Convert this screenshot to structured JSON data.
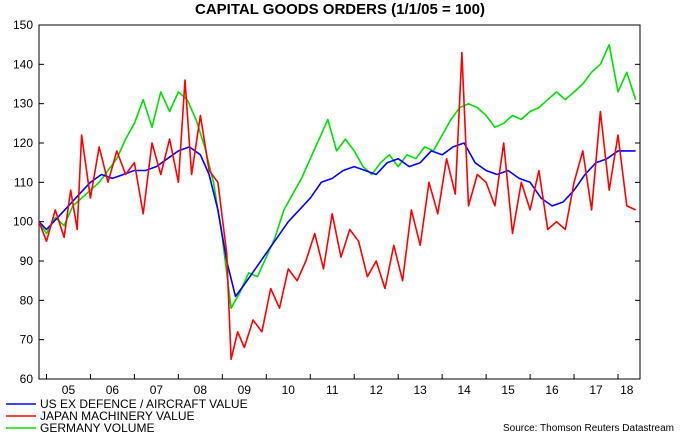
{
  "chart_data": {
    "type": "line",
    "title": "CAPITAL GOODS ORDERS (1/1/05 = 100)",
    "source": "Source: Thomson Reuters Datastream",
    "ylim": [
      60,
      150
    ],
    "yticks": [
      60,
      70,
      80,
      90,
      100,
      110,
      120,
      130,
      140,
      150
    ],
    "xlim": [
      2004.83,
      2018.5
    ],
    "xticks": [
      {
        "label": "05",
        "x": 2005.5
      },
      {
        "label": "06",
        "x": 2006.5
      },
      {
        "label": "07",
        "x": 2007.5
      },
      {
        "label": "08",
        "x": 2008.5
      },
      {
        "label": "09",
        "x": 2009.5
      },
      {
        "label": "10",
        "x": 2010.5
      },
      {
        "label": "11",
        "x": 2011.5
      },
      {
        "label": "12",
        "x": 2012.5
      },
      {
        "label": "13",
        "x": 2013.5
      },
      {
        "label": "14",
        "x": 2014.5
      },
      {
        "label": "15",
        "x": 2015.5
      },
      {
        "label": "16",
        "x": 2016.5
      },
      {
        "label": "17",
        "x": 2017.5
      },
      {
        "label": "18",
        "x": 2018.2
      }
    ],
    "grid": false,
    "legend_position": "bottom-left",
    "series": [
      {
        "name": "US EX DEFENCE / AIRCRAFT VALUE",
        "color": "#0000ff",
        "points": [
          [
            2004.83,
            100
          ],
          [
            2005.0,
            98
          ],
          [
            2005.25,
            101
          ],
          [
            2005.5,
            104
          ],
          [
            2005.75,
            107
          ],
          [
            2006.0,
            110
          ],
          [
            2006.25,
            112
          ],
          [
            2006.5,
            111
          ],
          [
            2006.75,
            112
          ],
          [
            2007.0,
            113
          ],
          [
            2007.25,
            113
          ],
          [
            2007.5,
            114
          ],
          [
            2007.75,
            116
          ],
          [
            2008.0,
            118
          ],
          [
            2008.25,
            119
          ],
          [
            2008.5,
            117
          ],
          [
            2008.7,
            112
          ],
          [
            2008.9,
            103
          ],
          [
            2009.1,
            90
          ],
          [
            2009.3,
            81
          ],
          [
            2009.5,
            84
          ],
          [
            2009.75,
            88
          ],
          [
            2010.0,
            92
          ],
          [
            2010.25,
            96
          ],
          [
            2010.5,
            100
          ],
          [
            2010.75,
            103
          ],
          [
            2011.0,
            106
          ],
          [
            2011.25,
            110
          ],
          [
            2011.5,
            111
          ],
          [
            2011.75,
            113
          ],
          [
            2012.0,
            114
          ],
          [
            2012.25,
            113
          ],
          [
            2012.5,
            112
          ],
          [
            2012.75,
            115
          ],
          [
            2013.0,
            116
          ],
          [
            2013.25,
            114
          ],
          [
            2013.5,
            115
          ],
          [
            2013.75,
            118
          ],
          [
            2014.0,
            117
          ],
          [
            2014.25,
            119
          ],
          [
            2014.5,
            120
          ],
          [
            2014.75,
            115
          ],
          [
            2015.0,
            113
          ],
          [
            2015.25,
            112
          ],
          [
            2015.5,
            113
          ],
          [
            2015.75,
            111
          ],
          [
            2016.0,
            110
          ],
          [
            2016.25,
            106
          ],
          [
            2016.5,
            104
          ],
          [
            2016.75,
            105
          ],
          [
            2017.0,
            108
          ],
          [
            2017.25,
            112
          ],
          [
            2017.5,
            115
          ],
          [
            2017.75,
            116
          ],
          [
            2018.0,
            118
          ],
          [
            2018.4,
            118
          ]
        ]
      },
      {
        "name": "JAPAN MACHINERY VALUE",
        "color": "#ff0000",
        "points": [
          [
            2004.83,
            100
          ],
          [
            2005.0,
            95
          ],
          [
            2005.2,
            103
          ],
          [
            2005.4,
            96
          ],
          [
            2005.55,
            108
          ],
          [
            2005.7,
            98
          ],
          [
            2005.8,
            122
          ],
          [
            2006.0,
            106
          ],
          [
            2006.2,
            119
          ],
          [
            2006.4,
            110
          ],
          [
            2006.6,
            118
          ],
          [
            2006.8,
            112
          ],
          [
            2007.0,
            115
          ],
          [
            2007.2,
            102
          ],
          [
            2007.4,
            120
          ],
          [
            2007.6,
            112
          ],
          [
            2007.8,
            121
          ],
          [
            2008.0,
            110
          ],
          [
            2008.15,
            136
          ],
          [
            2008.3,
            112
          ],
          [
            2008.5,
            127
          ],
          [
            2008.7,
            113
          ],
          [
            2008.9,
            110
          ],
          [
            2009.1,
            92
          ],
          [
            2009.2,
            65
          ],
          [
            2009.35,
            72
          ],
          [
            2009.5,
            68
          ],
          [
            2009.7,
            75
          ],
          [
            2009.9,
            72
          ],
          [
            2010.1,
            83
          ],
          [
            2010.3,
            78
          ],
          [
            2010.5,
            88
          ],
          [
            2010.7,
            85
          ],
          [
            2010.9,
            90
          ],
          [
            2011.1,
            97
          ],
          [
            2011.3,
            88
          ],
          [
            2011.5,
            102
          ],
          [
            2011.7,
            91
          ],
          [
            2011.9,
            98
          ],
          [
            2012.1,
            95
          ],
          [
            2012.3,
            86
          ],
          [
            2012.5,
            90
          ],
          [
            2012.7,
            83
          ],
          [
            2012.9,
            94
          ],
          [
            2013.1,
            85
          ],
          [
            2013.3,
            103
          ],
          [
            2013.5,
            94
          ],
          [
            2013.7,
            110
          ],
          [
            2013.9,
            102
          ],
          [
            2014.1,
            116
          ],
          [
            2014.3,
            107
          ],
          [
            2014.45,
            143
          ],
          [
            2014.6,
            104
          ],
          [
            2014.8,
            112
          ],
          [
            2015.0,
            110
          ],
          [
            2015.2,
            104
          ],
          [
            2015.4,
            120
          ],
          [
            2015.6,
            97
          ],
          [
            2015.8,
            110
          ],
          [
            2016.0,
            103
          ],
          [
            2016.2,
            113
          ],
          [
            2016.4,
            98
          ],
          [
            2016.6,
            100
          ],
          [
            2016.8,
            98
          ],
          [
            2017.0,
            110
          ],
          [
            2017.2,
            118
          ],
          [
            2017.4,
            103
          ],
          [
            2017.6,
            128
          ],
          [
            2017.8,
            108
          ],
          [
            2018.0,
            122
          ],
          [
            2018.2,
            104
          ],
          [
            2018.4,
            103
          ]
        ]
      },
      {
        "name": "GERMANY VOLUME",
        "color": "#00e000",
        "points": [
          [
            2004.83,
            100
          ],
          [
            2005.0,
            97
          ],
          [
            2005.2,
            101
          ],
          [
            2005.4,
            99
          ],
          [
            2005.6,
            104
          ],
          [
            2005.8,
            106
          ],
          [
            2006.0,
            108
          ],
          [
            2006.2,
            110
          ],
          [
            2006.4,
            113
          ],
          [
            2006.6,
            116
          ],
          [
            2006.8,
            121
          ],
          [
            2007.0,
            125
          ],
          [
            2007.2,
            131
          ],
          [
            2007.4,
            124
          ],
          [
            2007.6,
            133
          ],
          [
            2007.8,
            128
          ],
          [
            2008.0,
            133
          ],
          [
            2008.2,
            131
          ],
          [
            2008.4,
            126
          ],
          [
            2008.6,
            119
          ],
          [
            2008.8,
            110
          ],
          [
            2009.0,
            96
          ],
          [
            2009.2,
            78
          ],
          [
            2009.4,
            82
          ],
          [
            2009.6,
            87
          ],
          [
            2009.8,
            86
          ],
          [
            2010.0,
            91
          ],
          [
            2010.2,
            96
          ],
          [
            2010.4,
            103
          ],
          [
            2010.6,
            107
          ],
          [
            2010.8,
            111
          ],
          [
            2011.0,
            116
          ],
          [
            2011.2,
            121
          ],
          [
            2011.4,
            126
          ],
          [
            2011.6,
            118
          ],
          [
            2011.8,
            121
          ],
          [
            2012.0,
            118
          ],
          [
            2012.2,
            114
          ],
          [
            2012.4,
            112
          ],
          [
            2012.6,
            115
          ],
          [
            2012.8,
            117
          ],
          [
            2013.0,
            114
          ],
          [
            2013.2,
            117
          ],
          [
            2013.4,
            116
          ],
          [
            2013.6,
            119
          ],
          [
            2013.8,
            118
          ],
          [
            2014.0,
            122
          ],
          [
            2014.2,
            126
          ],
          [
            2014.4,
            129
          ],
          [
            2014.6,
            130
          ],
          [
            2014.8,
            129
          ],
          [
            2015.0,
            127
          ],
          [
            2015.2,
            124
          ],
          [
            2015.4,
            125
          ],
          [
            2015.6,
            127
          ],
          [
            2015.8,
            126
          ],
          [
            2016.0,
            128
          ],
          [
            2016.2,
            129
          ],
          [
            2016.4,
            131
          ],
          [
            2016.6,
            133
          ],
          [
            2016.8,
            131
          ],
          [
            2017.0,
            133
          ],
          [
            2017.2,
            135
          ],
          [
            2017.4,
            138
          ],
          [
            2017.6,
            140
          ],
          [
            2017.8,
            145
          ],
          [
            2018.0,
            133
          ],
          [
            2018.2,
            138
          ],
          [
            2018.4,
            131
          ]
        ]
      }
    ]
  }
}
